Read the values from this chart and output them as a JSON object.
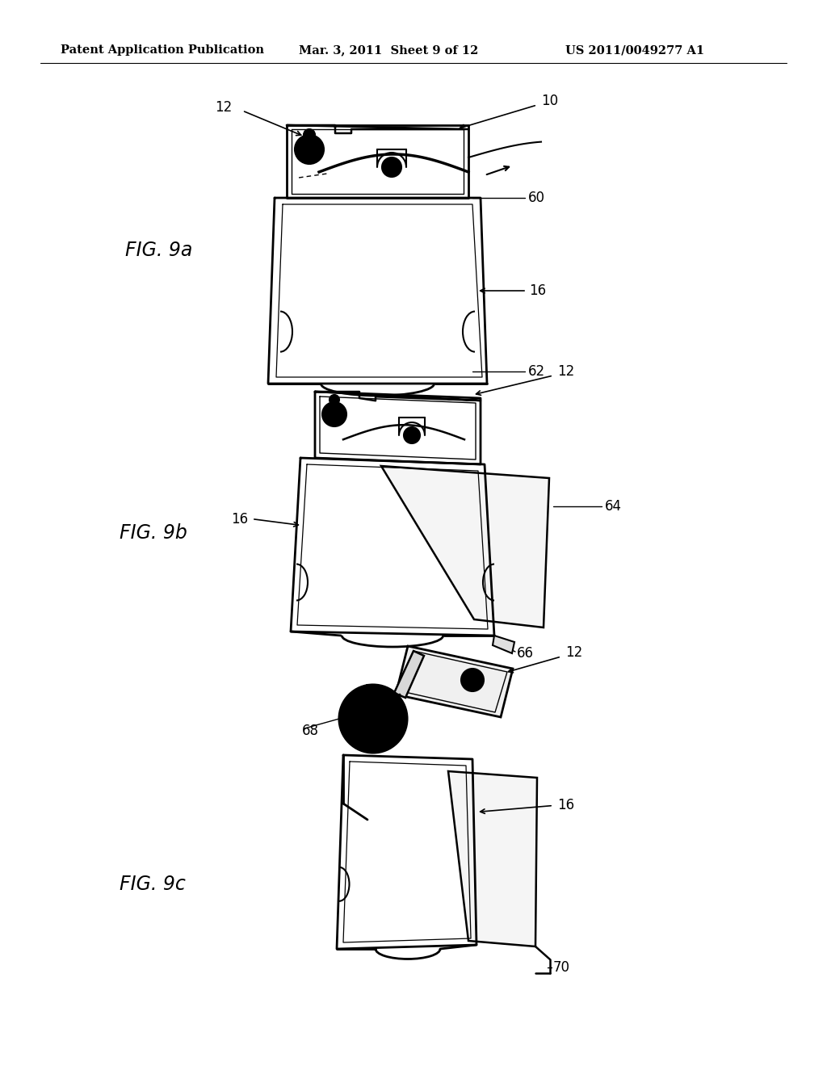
{
  "header_left": "Patent Application Publication",
  "header_mid": "Mar. 3, 2011  Sheet 9 of 12",
  "header_right": "US 2011/0049277 A1",
  "header_fontsize": 10.5,
  "fig_label_fontsize": 17,
  "annotation_fontsize": 12,
  "background_color": "#ffffff",
  "line_color": "#000000",
  "fig9a_label": "FIG. 9a",
  "fig9b_label": "FIG. 9b",
  "fig9c_label": "FIG. 9c"
}
